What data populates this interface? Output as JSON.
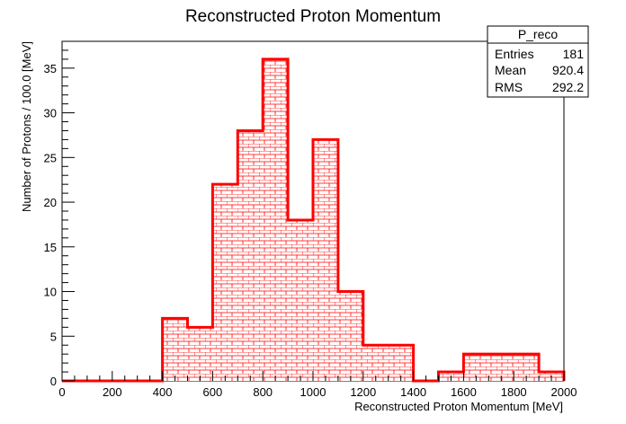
{
  "chart_data": {
    "type": "bar",
    "title": "Reconstructed Proton Momentum",
    "xlabel": "Reconstructed Proton Momentum [MeV]",
    "ylabel": "Number of Protons / 100.0 [MeV]",
    "xlim": [
      0,
      2000
    ],
    "ylim": [
      0,
      38
    ],
    "bin_edges": [
      0,
      100,
      200,
      300,
      400,
      500,
      600,
      700,
      800,
      900,
      1000,
      1100,
      1200,
      1300,
      1400,
      1500,
      1600,
      1700,
      1800,
      1900,
      2000
    ],
    "values": [
      0,
      0,
      0,
      0,
      7,
      6,
      22,
      28,
      36,
      18,
      27,
      10,
      4,
      4,
      0,
      1,
      3,
      3,
      3,
      1
    ],
    "x_ticks": [
      0,
      200,
      400,
      600,
      800,
      1000,
      1200,
      1400,
      1600,
      1800,
      2000
    ],
    "y_ticks": [
      0,
      5,
      10,
      15,
      20,
      25,
      30,
      35
    ],
    "series": [
      {
        "name": "P_reco",
        "color": "#ff0000",
        "fill_pattern": "brick"
      }
    ],
    "grid": false,
    "legend_position": "top-right"
  },
  "stats_box": {
    "title": "P_reco",
    "rows": [
      {
        "label": "Entries",
        "value": "181"
      },
      {
        "label": "Mean",
        "value": "920.4"
      },
      {
        "label": "RMS",
        "value": "292.2"
      }
    ]
  }
}
